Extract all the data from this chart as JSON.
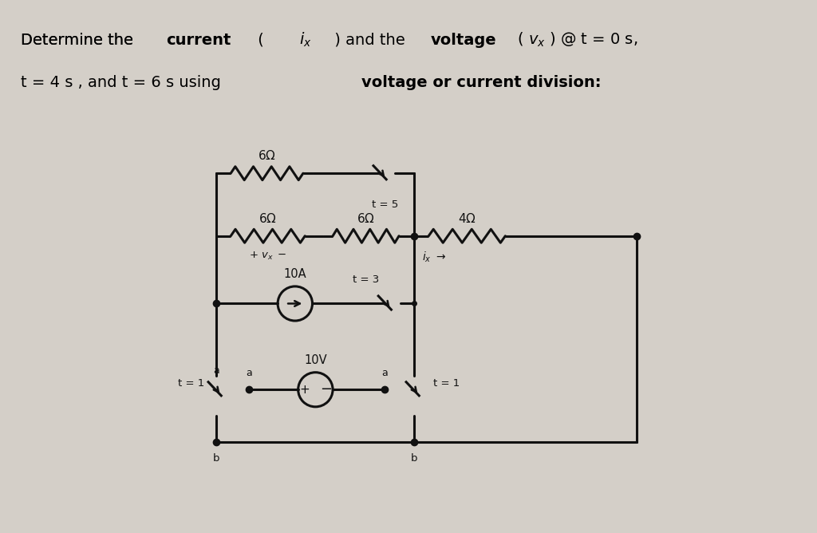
{
  "bg_color": "#d4cfc8",
  "cc": "#111111",
  "lw": 2.2,
  "amp": 0.11,
  "title1_normal": "Determine the ",
  "title1_bold": "current ( ",
  "title1_ix": "i_x",
  "title1_mid": " ) and the ",
  "title1_bold2": "voltage ( ",
  "title1_vx": "v_x",
  "title1_end": " ) @ t = 0 s,",
  "title2_start": "t = 4 s , and t = 6 s using ",
  "title2_bold": "voltage or current division:"
}
